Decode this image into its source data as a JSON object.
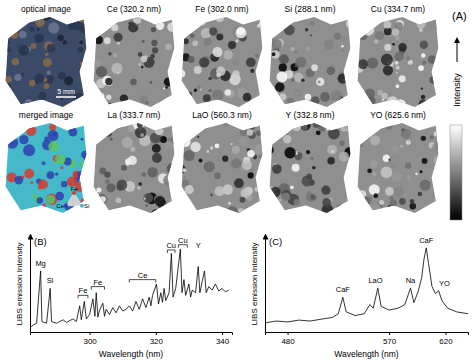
{
  "figure": {
    "panel_label": "(A)",
    "image_titles": [
      [
        "optical image",
        "Ce (320.2 nm)",
        "Fe (302.0 nm)",
        "Si (288.1 nm)",
        "Cu (334.7 nm)"
      ],
      [
        "merged image",
        "La (333.7 nm)",
        "LaO (560.3 nm)",
        "Y (332.8 nm)",
        "YO (625.6 nm)"
      ]
    ],
    "scale_bar": "5 mm",
    "merge_legend": [
      "Fe",
      "Ce",
      "Si"
    ],
    "colorbar_label": "Intensity"
  },
  "chart_data": [
    {
      "type": "line",
      "panel_label": "(B)",
      "color": "#000000",
      "xlabel": "Wavelength (nm)",
      "ylabel": "LIBS emission Intensity",
      "xlim": [
        282,
        343
      ],
      "xticks": [
        300,
        320,
        340
      ],
      "ylim": [
        0,
        110
      ],
      "tick_labels": "x",
      "x": [
        282,
        283,
        284,
        285.2,
        285.6,
        287,
        288.1,
        288.5,
        290,
        292,
        293,
        295,
        296,
        297,
        297.5,
        298.4,
        299,
        300,
        301,
        301.6,
        302,
        302.5,
        303,
        304,
        304.5,
        305,
        306,
        307,
        308,
        309,
        310,
        311,
        312,
        313,
        314,
        315,
        316,
        317,
        318,
        318.5,
        319,
        320.2,
        320.8,
        321.5,
        322,
        322.5,
        323,
        324,
        324.7,
        325.2,
        326,
        327.4,
        327.9,
        328.5,
        329,
        330,
        330.5,
        331,
        332,
        332.8,
        333.3,
        334,
        334.7,
        335.2,
        336,
        337,
        338,
        339,
        340,
        341,
        342
      ],
      "values": [
        5,
        8,
        10,
        70,
        12,
        10,
        50,
        12,
        10,
        14,
        11,
        15,
        12,
        30,
        14,
        35,
        15,
        20,
        38,
        18,
        45,
        17,
        25,
        33,
        18,
        26,
        20,
        28,
        22,
        30,
        24,
        26,
        30,
        24,
        35,
        26,
        38,
        28,
        40,
        30,
        42,
        55,
        32,
        45,
        34,
        50,
        36,
        45,
        90,
        40,
        50,
        95,
        45,
        60,
        42,
        55,
        40,
        48,
        45,
        75,
        45,
        58,
        70,
        45,
        52,
        48,
        55,
        47,
        50,
        46,
        48
      ],
      "annotations": [
        {
          "text": "Mg",
          "x": 285.2,
          "y": 76
        },
        {
          "text": "Si",
          "x": 288.1,
          "y": 56
        },
        {
          "text": "Fe",
          "x": 296.5,
          "x2": 299.5,
          "y": 42
        },
        {
          "text": "Fe",
          "x": 300.5,
          "x2": 304.5,
          "y": 52
        },
        {
          "text": "Ce",
          "x": 312,
          "x2": 320,
          "y": 60
        },
        {
          "text": "Cu",
          "x": 323.5,
          "x2": 325.8,
          "y": 94
        },
        {
          "text": "Cu",
          "x": 326.8,
          "x2": 329.5,
          "y": 100
        },
        {
          "text": "Y",
          "x": 332.8,
          "y": 96
        }
      ]
    },
    {
      "type": "line",
      "panel_label": "(C)",
      "color": "#000000",
      "xlabel": "Wavelength (nm)",
      "ylabel": "LIBS emission Intensity",
      "xlim": [
        460,
        640
      ],
      "xticks": [
        480,
        570,
        620
      ],
      "ylim": [
        0,
        105
      ],
      "tick_labels": "x",
      "x": [
        460,
        470,
        480,
        490,
        500,
        510,
        520,
        525,
        529,
        532,
        540,
        548,
        553,
        556,
        560,
        563,
        570,
        578,
        584,
        589,
        592,
        596,
        599,
        601,
        603,
        605,
        608,
        611,
        614,
        617,
        622,
        630,
        640
      ],
      "values": [
        10,
        12,
        11,
        13,
        12,
        14,
        16,
        20,
        38,
        22,
        18,
        20,
        30,
        26,
        48,
        28,
        24,
        26,
        30,
        48,
        32,
        45,
        60,
        80,
        92,
        75,
        50,
        42,
        45,
        34,
        26,
        22,
        20
      ],
      "annotations": [
        {
          "text": "CaF",
          "x": 529,
          "y": 44
        },
        {
          "text": "LaO",
          "x": 558,
          "y": 54
        },
        {
          "text": "Na",
          "x": 589,
          "y": 54
        },
        {
          "text": "CaF",
          "x": 603,
          "y": 97
        },
        {
          "text": "YO",
          "x": 619,
          "y": 50
        }
      ]
    }
  ]
}
